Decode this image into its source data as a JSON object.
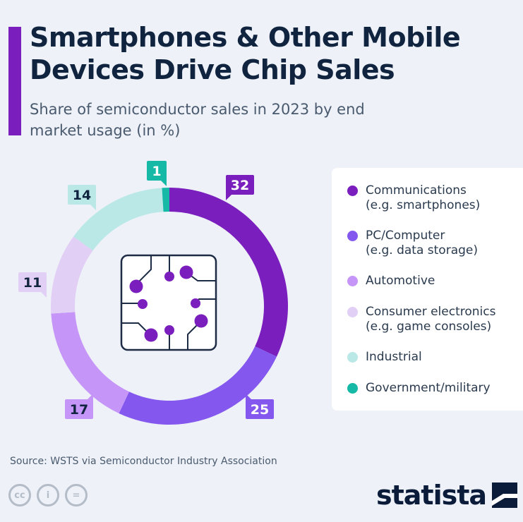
{
  "header": {
    "title": "Smartphones & Other Mobile Devices Drive Chip Sales",
    "subtitle": "Share of semiconductor sales in 2023 by end market usage (in %)",
    "accent_color": "#7a1fbd"
  },
  "chart_data": {
    "type": "pie",
    "variant": "donut",
    "title": "Smartphones & Other Mobile Devices Drive Chip Sales",
    "subtitle": "Share of semiconductor sales in 2023 by end market usage (in %)",
    "categories": [
      "Communications (e.g. smartphones)",
      "PC/Computer (e.g. data storage)",
      "Automotive",
      "Consumer electronics (e.g. game consoles)",
      "Industrial",
      "Government/military"
    ],
    "values": [
      32,
      25,
      17,
      11,
      14,
      1
    ],
    "colors": [
      "#7a1fbd",
      "#8458ee",
      "#c596f8",
      "#e2cff5",
      "#b9e8e6",
      "#16b8a6"
    ],
    "legend_position": "right",
    "center_icon": "microchip-icon"
  },
  "legend": {
    "items": [
      {
        "line1": "Communications",
        "line2": "(e.g. smartphones)",
        "color": "#7a1fbd"
      },
      {
        "line1": "PC/Computer",
        "line2": "(e.g. data storage)",
        "color": "#8458ee"
      },
      {
        "line1": "Automotive",
        "line2": "",
        "color": "#c596f8"
      },
      {
        "line1": "Consumer electronics",
        "line2": "(e.g. game consoles)",
        "color": "#e2cff5"
      },
      {
        "line1": "Industrial",
        "line2": "",
        "color": "#b9e8e6"
      },
      {
        "line1": "Government/military",
        "line2": "",
        "color": "#16b8a6"
      }
    ]
  },
  "footer": {
    "source": "Source: WSTS via Semiconductor Industry Association",
    "license_icons": [
      "cc-icon",
      "attribution-icon",
      "no-derivatives-icon"
    ],
    "license_glyphs": [
      "cc",
      "i",
      "="
    ],
    "brand": "statista"
  }
}
